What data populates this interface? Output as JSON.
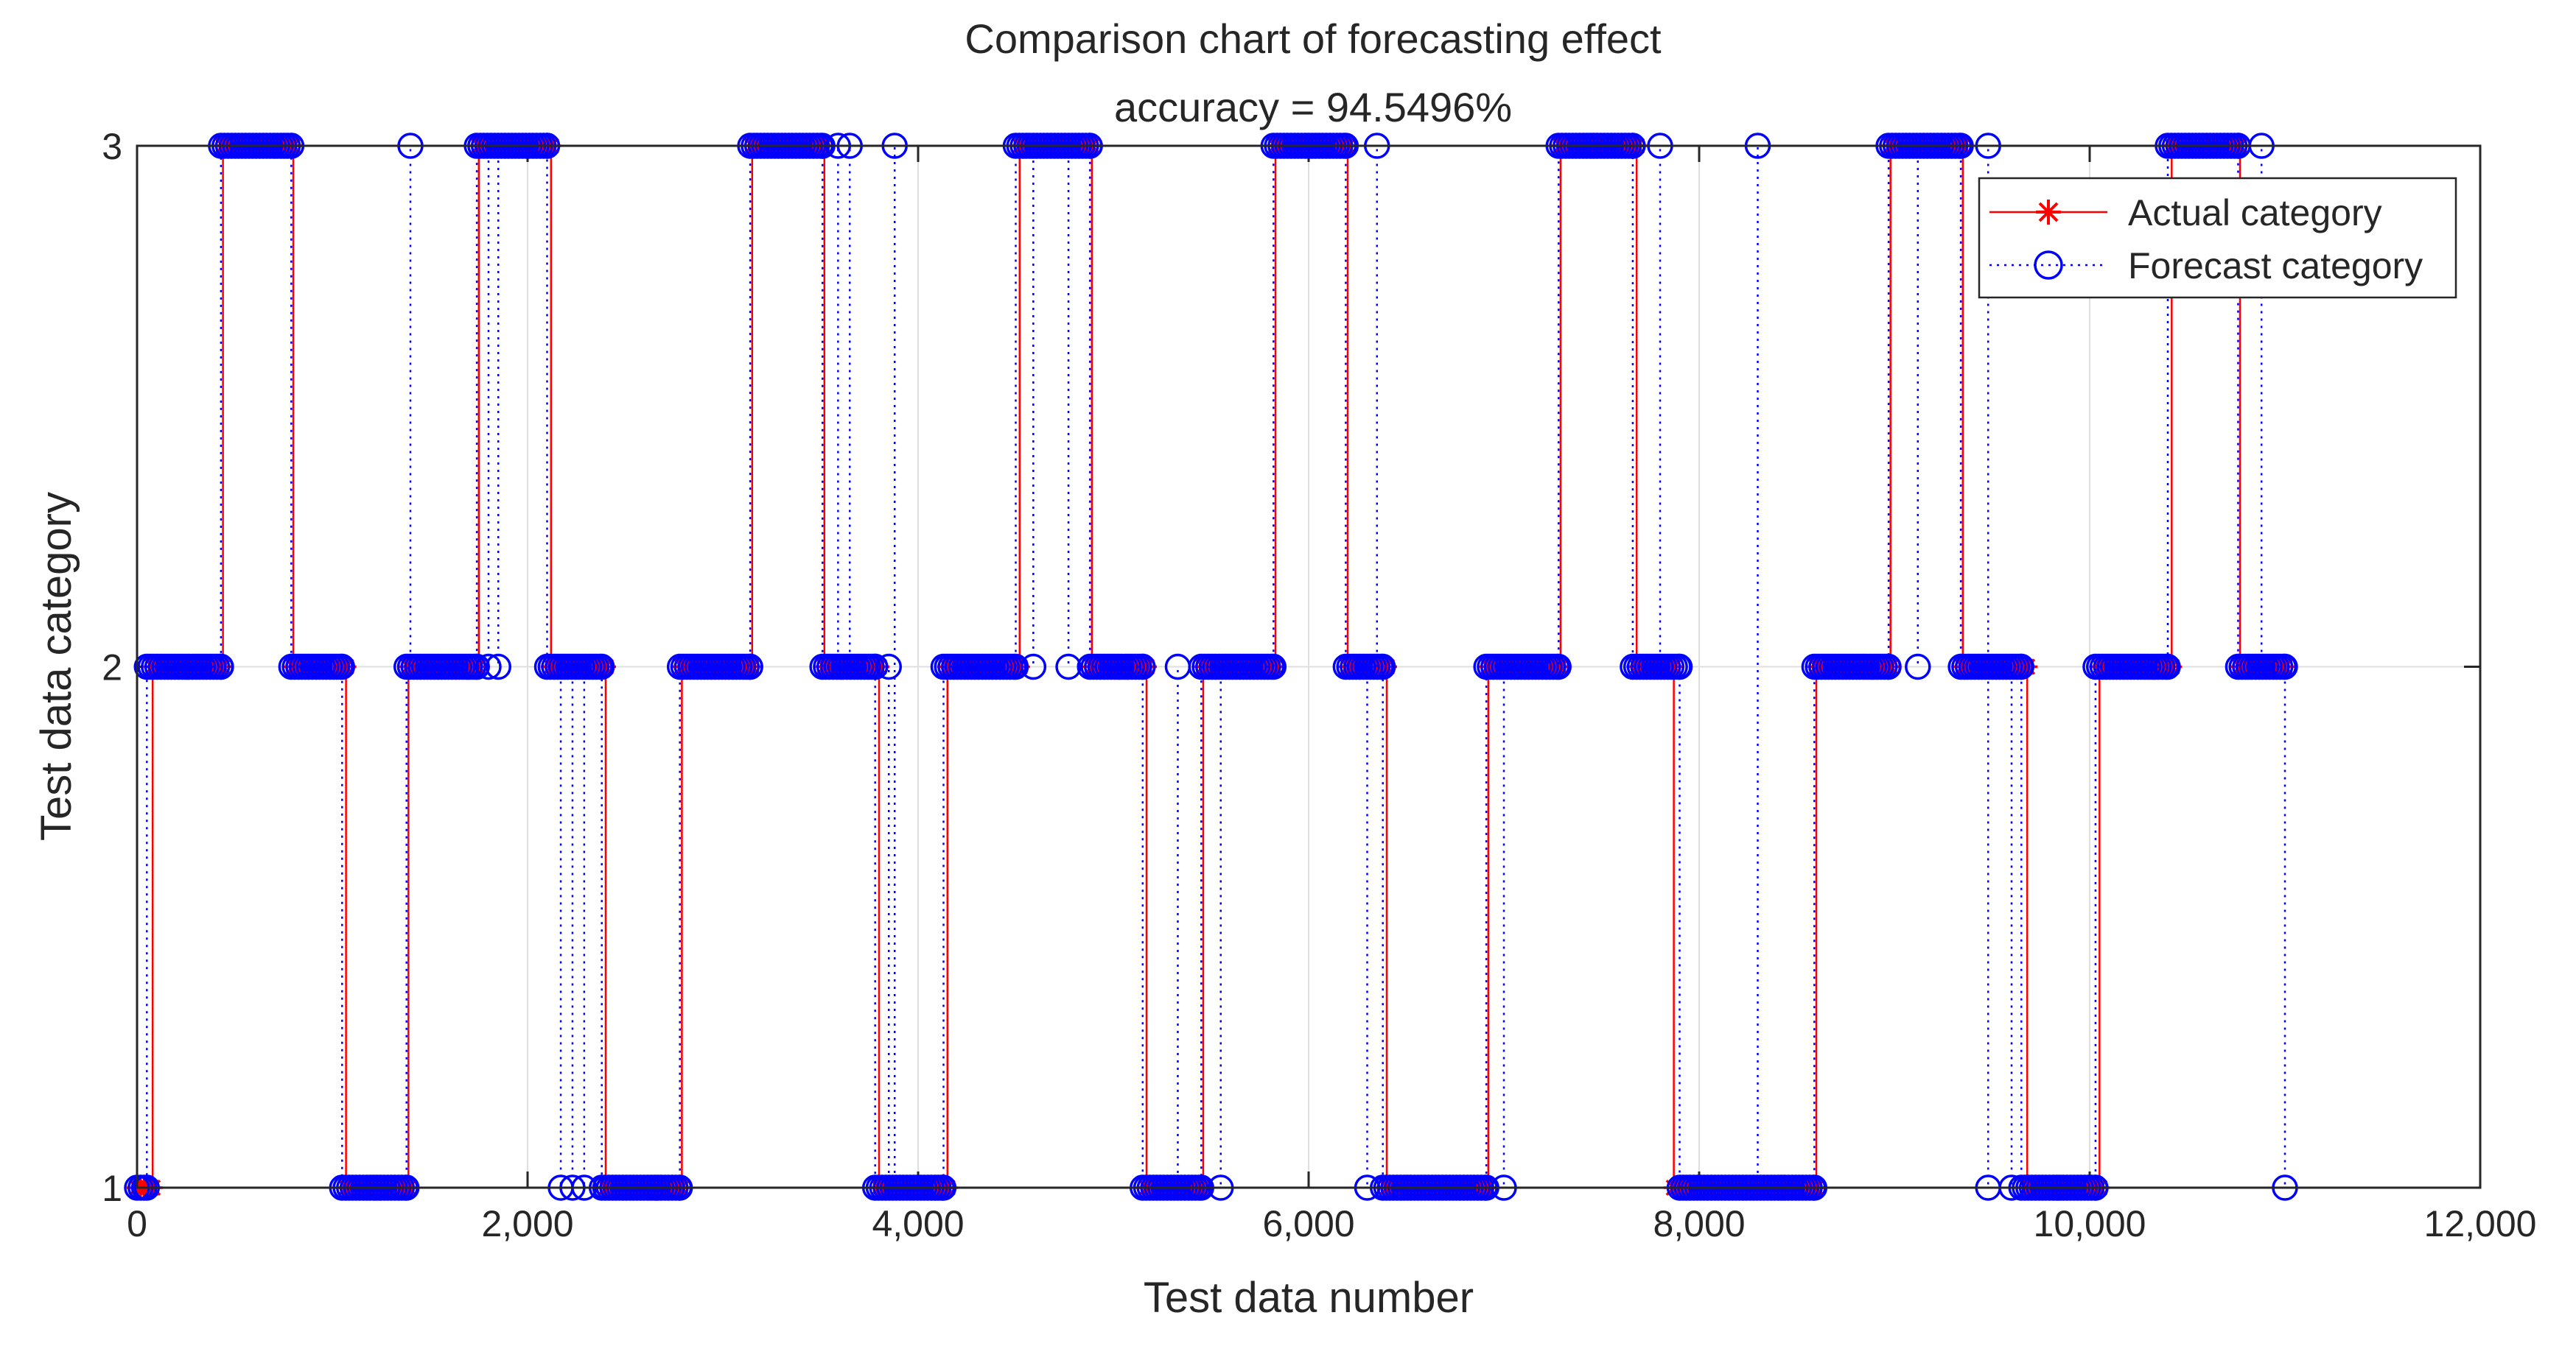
{
  "chart_data": {
    "type": "line",
    "title": "Comparison chart of forecasting effect",
    "subtitle": "accuracy = 94.5496%",
    "xlabel": "Test data number",
    "ylabel": "Test data category",
    "xlim": [
      0,
      12000
    ],
    "ylim": [
      1,
      3
    ],
    "xticks": [
      0,
      2000,
      4000,
      6000,
      8000,
      10000,
      12000
    ],
    "xtick_labels": [
      "0",
      "2,000",
      "4,000",
      "6,000",
      "8,000",
      "10,000",
      "12,000"
    ],
    "yticks": [
      1,
      2,
      3
    ],
    "ytick_labels": [
      "1",
      "2",
      "3"
    ],
    "grid": true,
    "legend_position": "top-right",
    "num_points": 11000,
    "series": [
      {
        "name": "Actual category",
        "style": "red solid line, asterisk markers",
        "color": "#ff0000",
        "segments": [
          {
            "start": 0,
            "end": 80,
            "value": 1
          },
          {
            "start": 80,
            "end": 440,
            "value": 2
          },
          {
            "start": 440,
            "end": 800,
            "value": 3
          },
          {
            "start": 800,
            "end": 1070,
            "value": 2
          },
          {
            "start": 1070,
            "end": 1390,
            "value": 1
          },
          {
            "start": 1390,
            "end": 1750,
            "value": 2
          },
          {
            "start": 1750,
            "end": 2120,
            "value": 3
          },
          {
            "start": 2120,
            "end": 2400,
            "value": 2
          },
          {
            "start": 2400,
            "end": 2790,
            "value": 1
          },
          {
            "start": 2790,
            "end": 3150,
            "value": 2
          },
          {
            "start": 3150,
            "end": 3520,
            "value": 3
          },
          {
            "start": 3520,
            "end": 3800,
            "value": 2
          },
          {
            "start": 3800,
            "end": 4150,
            "value": 1
          },
          {
            "start": 4150,
            "end": 4520,
            "value": 2
          },
          {
            "start": 4520,
            "end": 4890,
            "value": 3
          },
          {
            "start": 4890,
            "end": 5170,
            "value": 2
          },
          {
            "start": 5170,
            "end": 5460,
            "value": 1
          },
          {
            "start": 5460,
            "end": 5830,
            "value": 2
          },
          {
            "start": 5830,
            "end": 6200,
            "value": 3
          },
          {
            "start": 6200,
            "end": 6400,
            "value": 2
          },
          {
            "start": 6400,
            "end": 6920,
            "value": 1
          },
          {
            "start": 6920,
            "end": 7290,
            "value": 2
          },
          {
            "start": 7290,
            "end": 7680,
            "value": 3
          },
          {
            "start": 7680,
            "end": 7870,
            "value": 2
          },
          {
            "start": 7870,
            "end": 8600,
            "value": 1
          },
          {
            "start": 8600,
            "end": 8980,
            "value": 2
          },
          {
            "start": 8980,
            "end": 9350,
            "value": 3
          },
          {
            "start": 9350,
            "end": 9680,
            "value": 2
          },
          {
            "start": 9680,
            "end": 10050,
            "value": 1
          },
          {
            "start": 10050,
            "end": 10420,
            "value": 2
          },
          {
            "start": 10420,
            "end": 10770,
            "value": 3
          },
          {
            "start": 10770,
            "end": 11000,
            "value": 2
          }
        ]
      },
      {
        "name": "Forecast category",
        "style": "blue dotted line, circle markers",
        "color": "#0000ff",
        "segments": [
          {
            "start": 0,
            "end": 50,
            "value": 1
          },
          {
            "start": 50,
            "end": 430,
            "value": 2
          },
          {
            "start": 430,
            "end": 790,
            "value": 3
          },
          {
            "start": 790,
            "end": 1050,
            "value": 2
          },
          {
            "start": 1050,
            "end": 1380,
            "value": 1
          },
          {
            "start": 1380,
            "end": 1740,
            "value": 2
          },
          {
            "start": 1740,
            "end": 2100,
            "value": 3
          },
          {
            "start": 2100,
            "end": 2380,
            "value": 2
          },
          {
            "start": 2380,
            "end": 2780,
            "value": 1
          },
          {
            "start": 2780,
            "end": 3140,
            "value": 2
          },
          {
            "start": 3140,
            "end": 3510,
            "value": 3
          },
          {
            "start": 3510,
            "end": 3780,
            "value": 2
          },
          {
            "start": 3780,
            "end": 4130,
            "value": 1
          },
          {
            "start": 4130,
            "end": 4500,
            "value": 2
          },
          {
            "start": 4500,
            "end": 4880,
            "value": 3
          },
          {
            "start": 4880,
            "end": 5150,
            "value": 2
          },
          {
            "start": 5150,
            "end": 5450,
            "value": 1
          },
          {
            "start": 5450,
            "end": 5820,
            "value": 2
          },
          {
            "start": 5820,
            "end": 6190,
            "value": 3
          },
          {
            "start": 6190,
            "end": 6380,
            "value": 2
          },
          {
            "start": 6380,
            "end": 6910,
            "value": 1
          },
          {
            "start": 6910,
            "end": 7280,
            "value": 2
          },
          {
            "start": 7280,
            "end": 7660,
            "value": 3
          },
          {
            "start": 7660,
            "end": 7900,
            "value": 2
          },
          {
            "start": 7900,
            "end": 8590,
            "value": 1
          },
          {
            "start": 8590,
            "end": 8970,
            "value": 2
          },
          {
            "start": 8970,
            "end": 9340,
            "value": 3
          },
          {
            "start": 9340,
            "end": 9650,
            "value": 2
          },
          {
            "start": 9650,
            "end": 10030,
            "value": 1
          },
          {
            "start": 10030,
            "end": 10400,
            "value": 2
          },
          {
            "start": 10400,
            "end": 10760,
            "value": 3
          },
          {
            "start": 10760,
            "end": 11000,
            "value": 2
          }
        ],
        "outliers": [
          {
            "x": 1400,
            "value": 3
          },
          {
            "x": 1800,
            "value": 2
          },
          {
            "x": 1850,
            "value": 2
          },
          {
            "x": 2170,
            "value": 1
          },
          {
            "x": 2230,
            "value": 1
          },
          {
            "x": 2290,
            "value": 1
          },
          {
            "x": 3590,
            "value": 3
          },
          {
            "x": 3650,
            "value": 3
          },
          {
            "x": 3880,
            "value": 3
          },
          {
            "x": 3850,
            "value": 2
          },
          {
            "x": 4590,
            "value": 2
          },
          {
            "x": 4770,
            "value": 2
          },
          {
            "x": 5330,
            "value": 2
          },
          {
            "x": 5550,
            "value": 1
          },
          {
            "x": 6300,
            "value": 1
          },
          {
            "x": 6350,
            "value": 3
          },
          {
            "x": 7000,
            "value": 1
          },
          {
            "x": 7800,
            "value": 3
          },
          {
            "x": 8300,
            "value": 3
          },
          {
            "x": 9120,
            "value": 2
          },
          {
            "x": 9480,
            "value": 3
          },
          {
            "x": 9480,
            "value": 1
          },
          {
            "x": 9600,
            "value": 1
          },
          {
            "x": 10880,
            "value": 3
          },
          {
            "x": 11000,
            "value": 1
          }
        ]
      }
    ]
  }
}
